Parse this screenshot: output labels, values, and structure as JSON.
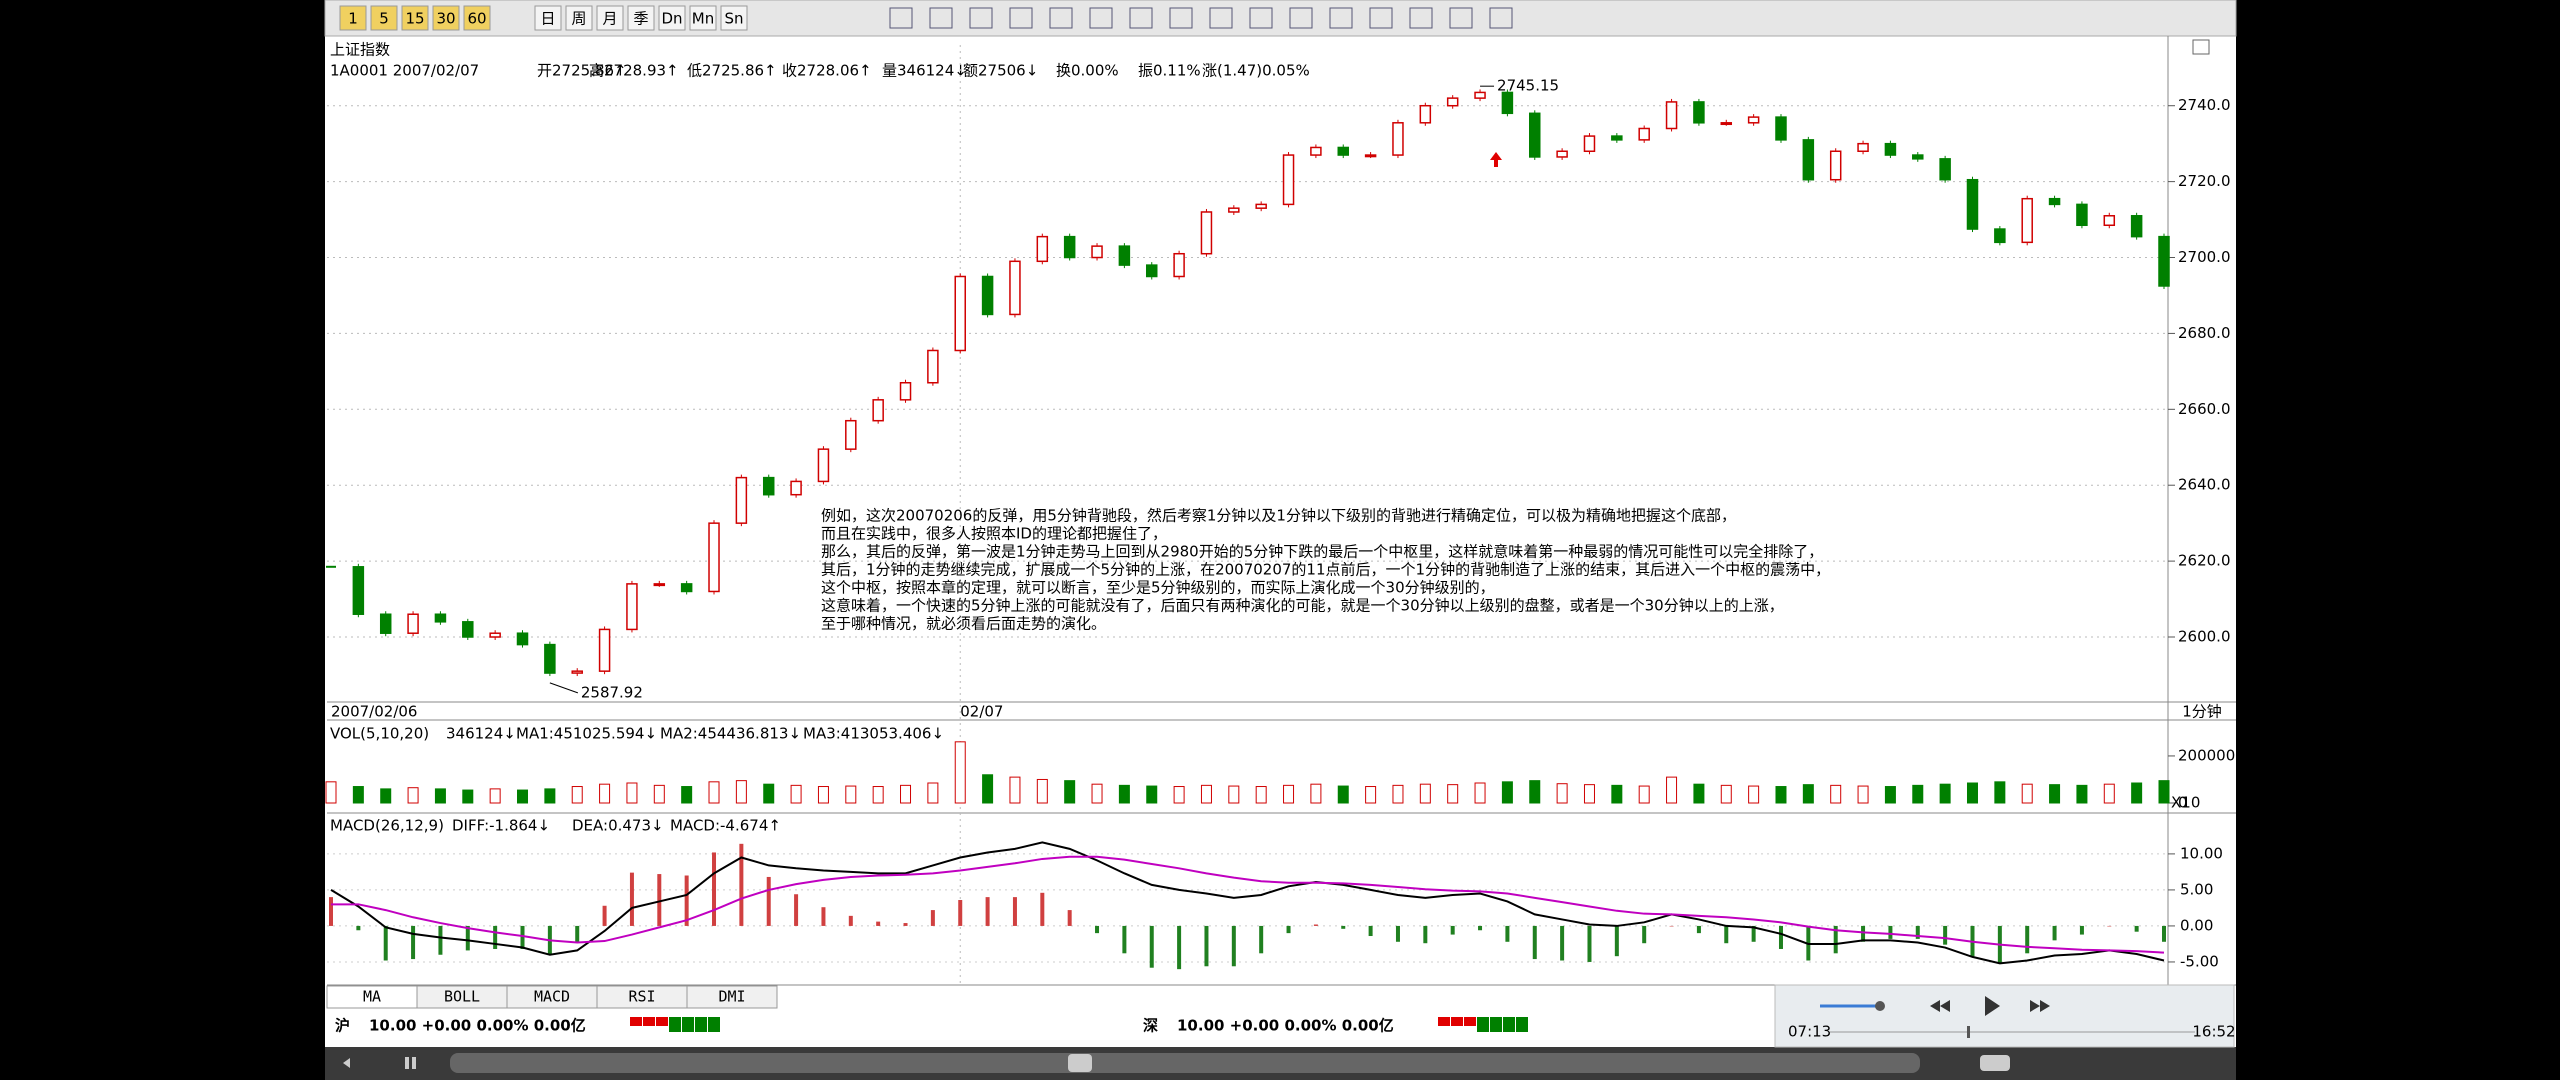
{
  "toolbar": {
    "buttons": [
      "1",
      "5",
      "15",
      "30",
      "60",
      "日",
      "周",
      "月",
      "季",
      "Dn",
      "Mn",
      "Sn"
    ]
  },
  "chart_title": "上证指数",
  "info": [
    {
      "text": "1A0001 2007/02/07",
      "color": "#000000"
    },
    {
      "text": "开2725.86↑",
      "color": "#008000"
    },
    {
      "text": "高2728.93↑",
      "color": "#d00000"
    },
    {
      "text": "低2725.86↑",
      "color": "#008000"
    },
    {
      "text": "收2728.06↑",
      "color": "#d00000"
    },
    {
      "text": "量346124↓",
      "color": "#000000"
    },
    {
      "text": "额27506↓",
      "color": "#000000"
    },
    {
      "text": "换0.00%",
      "color": "#000000"
    },
    {
      "text": "振0.11%",
      "color": "#000000"
    },
    {
      "text": "涨(1.47)0.05%",
      "color": "#d00000"
    }
  ],
  "price_panel": {
    "close": [
      2618.5,
      2606,
      2601,
      2606,
      2604,
      2600,
      2601,
      2598,
      2590.5,
      2591,
      2602,
      2614,
      2614,
      2612,
      2630,
      2642,
      2637.5,
      2641,
      2649.5,
      2657,
      2662.5,
      2667,
      2675.5,
      2695,
      2685,
      2699,
      2705.5,
      2700,
      2703,
      2698,
      2695,
      2701,
      2712,
      2713,
      2714,
      2727,
      2729,
      2727,
      2727,
      2735.5,
      2740,
      2742,
      2743.5,
      2738,
      2726.5,
      2728,
      2732,
      2731,
      2734,
      2741,
      2735.5,
      2735.5,
      2737,
      2731,
      2720.5,
      2728,
      2730,
      2727,
      2726,
      2720.5,
      2707.5,
      2704,
      2715.5,
      2714,
      2708.5,
      2711,
      2705.5,
      2692.5
    ],
    "ylim": [
      2583.4,
      2756
    ],
    "yticks": [
      {
        "value": 2600,
        "label": "2600.0"
      },
      {
        "value": 2620,
        "label": "2620.0"
      },
      {
        "value": 2640,
        "label": "2640.0"
      },
      {
        "value": 2660,
        "label": "2660.0"
      },
      {
        "value": 2680,
        "label": "2680.0"
      },
      {
        "value": 2700,
        "label": "2700.0"
      },
      {
        "value": 2720,
        "label": "2720.0"
      },
      {
        "value": 2740,
        "label": "2740.0"
      }
    ],
    "high_label": 2745.15,
    "low_label": 2587.92,
    "up_color": "#d00000",
    "down_color": "#008000",
    "date_labels": [
      "2007/02/06",
      "02/07"
    ],
    "period": "1分钟"
  },
  "annotation_lines": [
    "例如，这次20070206的反弹，用5分钟背驰段，然后考察1分钟以及1分钟以下级别的背驰进行精确定位，可以极为精确地把握这个底部，",
    "而且在实践中，很多人按照本ID的理论都把握住了，",
    "那么，其后的反弹，第一波是1分钟走势马上回到从2980开始的5分钟下跌的最后一个中枢里，这样就意味着第一种最弱的情况可能性可以完全排除了，",
    "其后，1分钟的走势继续完成，扩展成一个5分钟的上涨，在20070207的11点前后，一个1分钟的背驰制造了上涨的结束，其后进入一个中枢的震荡中，",
    "这个中枢，按照本章的定理，就可以断言，至少是5分钟级别的，而实际上演化成一个30分钟级别的，",
    "这意味着，一个快速的5分钟上涨的可能就没有了，后面只有两种演化的可能，就是一个30分钟以上级别的盘整，或者是一个30分钟以上的上涨，",
    "至于哪种情况，就必须看后面走势的演化。"
  ],
  "volume_panel": {
    "labels": [
      {
        "text": "VOL(5,10,20)",
        "color": "#000000"
      },
      {
        "text": "346124↓",
        "color": "#000080"
      },
      {
        "text": "MA1:451025.594↓",
        "color": "#c000c0"
      },
      {
        "text": "MA2:454436.813↓",
        "color": "#707070"
      },
      {
        "text": "MA3:413053.406↓",
        "color": "#800000"
      }
    ],
    "values": [
      90000,
      70000,
      60000,
      65000,
      60000,
      55000,
      60000,
      55000,
      60000,
      70000,
      80000,
      85000,
      75000,
      70000,
      90000,
      95000,
      80000,
      75000,
      70000,
      72000,
      70000,
      75000,
      85000,
      260000,
      120000,
      110000,
      100000,
      95000,
      80000,
      75000,
      72000,
      70000,
      75000,
      72000,
      70000,
      75000,
      80000,
      72000,
      70000,
      75000,
      80000,
      78000,
      85000,
      90000,
      95000,
      82000,
      78000,
      75000,
      72000,
      110000,
      80000,
      75000,
      72000,
      70000,
      78000,
      75000,
      72000,
      70000,
      75000,
      80000,
      85000,
      90000,
      80000,
      78000,
      75000,
      80000,
      85000,
      95000
    ],
    "ylim": [
      0,
      340000
    ],
    "yticks": [
      0,
      200000
    ],
    "unit": "X10"
  },
  "macd_panel": {
    "labels": [
      {
        "text": "MACD(26,12,9)",
        "color": "#000000"
      },
      {
        "text": "DIFF:-1.864↓",
        "color": "#000080"
      },
      {
        "text": "DEA:0.473↓",
        "color": "#c000c0"
      },
      {
        "text": "MACD:-4.674↑",
        "color": "#707070"
      }
    ],
    "diff": [
      5,
      2.7,
      -0.2,
      -1.1,
      -1.6,
      -2,
      -2.5,
      -3,
      -4,
      -3.4,
      -0.7,
      2.5,
      3.4,
      4.3,
      7.3,
      9.5,
      8.4,
      8,
      7.7,
      7.5,
      7.3,
      7.3,
      8.4,
      9.5,
      10.2,
      10.7,
      11.6,
      10.7,
      9.1,
      7.3,
      5.7,
      5,
      4.5,
      3.9,
      4.3,
      5.5,
      6.1,
      5.7,
      5,
      4.3,
      3.9,
      4.3,
      4.5,
      3.4,
      1.6,
      0.9,
      0.2,
      0,
      0.5,
      1.6,
      0.9,
      0,
      -0.2,
      -1.1,
      -2.5,
      -2.5,
      -2,
      -2,
      -2.3,
      -3,
      -4.3,
      -5.2,
      -4.8,
      -4.1,
      -3.9,
      -3.4,
      -3.9,
      -4.8
    ],
    "dea": [
      3,
      3,
      2.2,
      1.2,
      0.4,
      -0.3,
      -0.9,
      -1.4,
      -2,
      -2.3,
      -2.1,
      -1.2,
      -0.2,
      0.8,
      2.2,
      3.8,
      5,
      5.8,
      6.4,
      6.8,
      7,
      7.1,
      7.3,
      7.7,
      8.2,
      8.7,
      9.3,
      9.6,
      9.6,
      9.2,
      8.6,
      8,
      7.3,
      6.7,
      6.2,
      6,
      6,
      5.9,
      5.7,
      5.4,
      5.1,
      4.9,
      4.8,
      4.5,
      3.9,
      3.3,
      2.7,
      2.1,
      1.7,
      1.6,
      1.4,
      1.2,
      0.9,
      0.5,
      -0.1,
      -0.6,
      -0.9,
      -1.1,
      -1.4,
      -1.7,
      -2.2,
      -2.6,
      -2.9,
      -3.1,
      -3.3,
      -3.4,
      -3.5,
      -3.7
    ],
    "macd": [
      4,
      -0.6,
      -4.8,
      -4.6,
      -4,
      -3.4,
      -3.2,
      -3.2,
      -4,
      -2.2,
      2.8,
      7.4,
      7.2,
      7,
      10.2,
      11.4,
      6.8,
      4.4,
      2.6,
      1.4,
      0.6,
      0.4,
      2.2,
      3.6,
      4,
      4,
      4.6,
      2.2,
      -1,
      -3.8,
      -5.8,
      -6,
      -5.6,
      -5.6,
      -3.8,
      -1,
      0.2,
      -0.4,
      -1.4,
      -2.2,
      -2.4,
      -1.2,
      -0.6,
      -2.2,
      -4.6,
      -4.8,
      -5,
      -4.2,
      -2.4,
      0,
      -1,
      -2.4,
      -2.2,
      -3.2,
      -4.8,
      -3.8,
      -2.2,
      -1.8,
      -1.8,
      -2.6,
      -4.2,
      -5.2,
      -3.8,
      -2,
      -1.2,
      0,
      -0.8,
      -2.2
    ],
    "diff_color": "#000000",
    "dea_color": "#c000c0",
    "ylim": [
      -8.2,
      15.4
    ],
    "yticks": [
      {
        "value": 10,
        "label": "10.00"
      },
      {
        "value": 5,
        "label": "5.00"
      },
      {
        "value": 0,
        "label": "0.00"
      },
      {
        "value": -5,
        "label": "-5.00"
      }
    ]
  },
  "tabs": [
    "MA",
    "BOLL",
    "MACD",
    "RSI",
    "DMI"
  ],
  "status": [
    {
      "market": "沪",
      "text": "10.00 +0.00 0.00% 0.00亿"
    },
    {
      "market": "深",
      "text": "10.00 +0.00 0.00% 0.00亿"
    }
  ],
  "player": {
    "elapsed": "07:13",
    "total": "16:52"
  }
}
